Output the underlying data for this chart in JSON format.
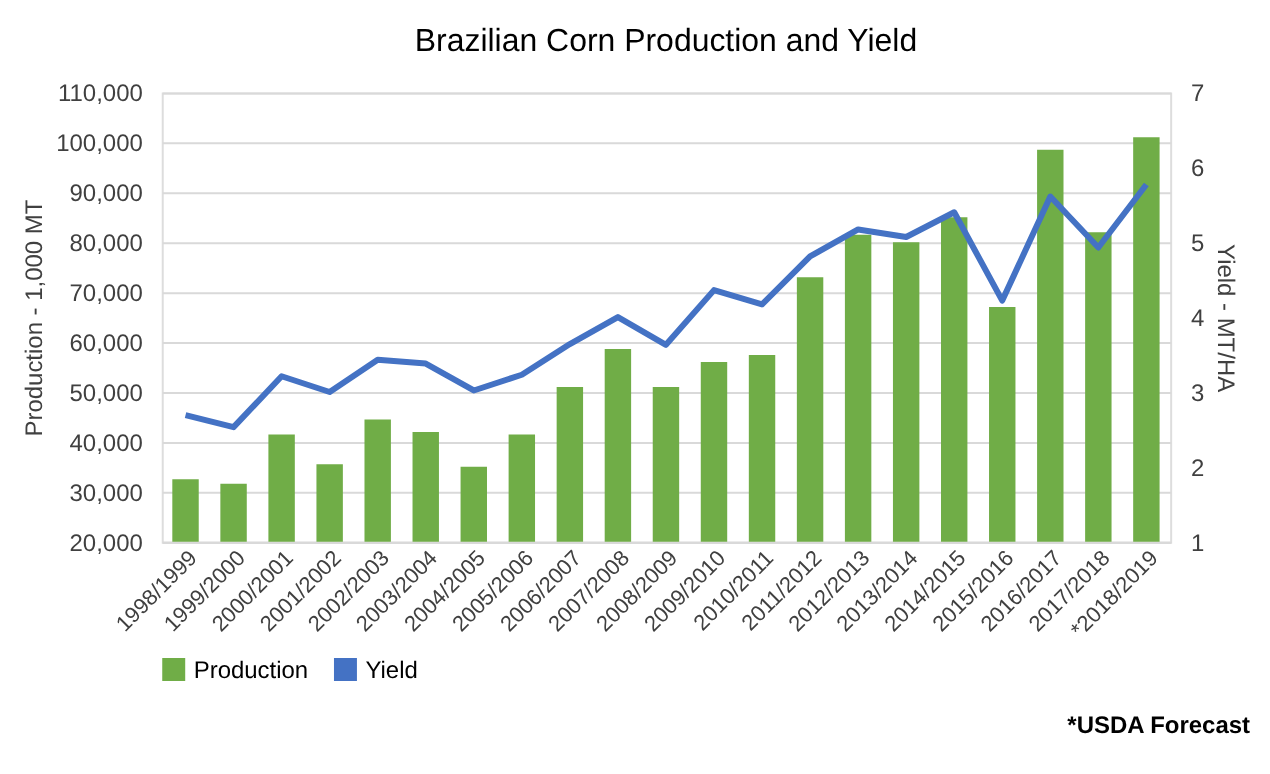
{
  "chart_data": {
    "type": "bar",
    "title": "Brazilian Corn Production and Yield",
    "categories": [
      "1998/1999",
      "1999/2000",
      "2000/2001",
      "2001/2002",
      "2002/2003",
      "2003/2004",
      "2004/2005",
      "2005/2006",
      "2006/2007",
      "2007/2008",
      "2008/2009",
      "2009/2010",
      "2010/2011",
      "2011/2012",
      "2012/2013",
      "2013/2014",
      "2014/2015",
      "2015/2016",
      "2016/2017",
      "2017/2018",
      "*2018/2019"
    ],
    "series": [
      {
        "name": "Production",
        "color": "#70ad47",
        "values": [
          32500,
          31600,
          41500,
          35500,
          44500,
          42000,
          35000,
          41500,
          51000,
          58600,
          51000,
          56000,
          57400,
          73000,
          81500,
          80000,
          85000,
          67000,
          98500,
          82000,
          101000
        ]
      },
      {
        "name": "Yield",
        "type": "line",
        "axis": "y2",
        "color": "#4472c4",
        "values": [
          2.69,
          2.53,
          3.21,
          3.0,
          3.43,
          3.38,
          3.02,
          3.23,
          3.64,
          4.0,
          3.63,
          4.36,
          4.17,
          4.81,
          5.17,
          5.07,
          5.4,
          4.22,
          5.61,
          4.93,
          5.77
        ]
      }
    ],
    "ylabel": "Production - 1,000 MT",
    "y2label": "Yield - MT/HA",
    "ylim": [
      20000,
      110000
    ],
    "yticks": [
      {
        "value": 20000,
        "label": "20,000"
      },
      {
        "value": 30000,
        "label": "30,000"
      },
      {
        "value": 40000,
        "label": "40,000"
      },
      {
        "value": 50000,
        "label": "50,000"
      },
      {
        "value": 60000,
        "label": "60,000"
      },
      {
        "value": 70000,
        "label": "70,000"
      },
      {
        "value": 80000,
        "label": "80,000"
      },
      {
        "value": 90000,
        "label": "90,000"
      },
      {
        "value": 100000,
        "label": "100,000"
      },
      {
        "value": 110000,
        "label": "110,000"
      }
    ],
    "y2lim": [
      1,
      7
    ],
    "y2ticks": [
      1,
      2,
      3,
      4,
      5,
      6,
      7
    ],
    "grid": "y",
    "legend": "bottom",
    "annotations": [
      "*USDA Forecast"
    ]
  }
}
